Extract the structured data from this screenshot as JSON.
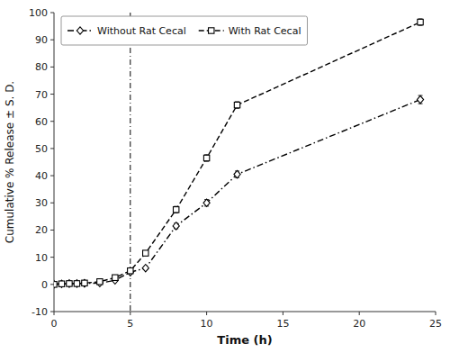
{
  "chart_data": {
    "type": "line",
    "xlabel": "Time (h)",
    "ylabel": "Cumulative % Release ± S. D.",
    "x": [
      0,
      0.5,
      1,
      1.5,
      2,
      3,
      4,
      5,
      6,
      8,
      10,
      12,
      24
    ],
    "series": [
      {
        "name": "Without Rat Cecal",
        "color": "#000000",
        "marker": "diamond",
        "line_style": "dashdot",
        "values": [
          0,
          0.2,
          0.3,
          0.3,
          0.4,
          0.5,
          1.5,
          4.5,
          6.0,
          21.5,
          30.0,
          40.5,
          68.0
        ],
        "errors": [
          0.05,
          0.05,
          0.05,
          0.05,
          0.05,
          0.1,
          0.2,
          0.3,
          0.4,
          1.0,
          1.2,
          1.2,
          1.5
        ]
      },
      {
        "name": "With Rat Cecal",
        "color": "#000000",
        "marker": "square",
        "line_style": "dashed",
        "values": [
          0,
          0.2,
          0.3,
          0.3,
          0.5,
          1.0,
          2.5,
          5.0,
          11.5,
          27.5,
          46.5,
          66.0,
          96.5
        ],
        "errors": [
          0.05,
          0.05,
          0.05,
          0.05,
          0.1,
          0.2,
          0.3,
          0.4,
          0.8,
          1.2,
          1.2,
          1.2,
          1.2
        ]
      }
    ],
    "vline_x": 5,
    "xlim": [
      0,
      25
    ],
    "ylim": [
      -10,
      100
    ],
    "xticks": [
      0,
      5,
      10,
      15,
      20,
      25
    ],
    "yticks": [
      -10,
      0,
      10,
      20,
      30,
      40,
      50,
      60,
      70,
      80,
      90,
      100
    ],
    "grid": false,
    "legend": "upper left"
  }
}
